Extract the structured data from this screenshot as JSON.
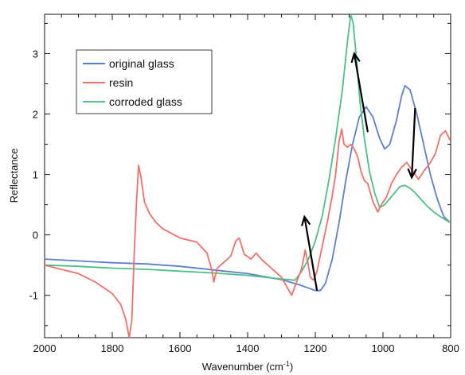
{
  "chart_data": {
    "type": "line",
    "xlabel": "Wavenumber (cm",
    "xlabel_sup": "-1",
    "xlabel_close": ")",
    "ylabel": "Reflectance",
    "xlim": [
      2000,
      800
    ],
    "ylim": [
      -1.7,
      3.65
    ],
    "x_reversed": true,
    "grid": false,
    "legend_position": "upper-left",
    "x_ticks": [
      {
        "value": 2000,
        "label": "2000"
      },
      {
        "value": 1800,
        "label": "1800"
      },
      {
        "value": 1600,
        "label": "1600"
      },
      {
        "value": 1400,
        "label": "1400"
      },
      {
        "value": 1200,
        "label": "1200"
      },
      {
        "value": 1000,
        "label": "1000"
      },
      {
        "value": 800,
        "label": "800"
      }
    ],
    "y_ticks": [
      {
        "value": -1,
        "label": "-1"
      },
      {
        "value": 0,
        "label": "0"
      },
      {
        "value": 1,
        "label": "1"
      },
      {
        "value": 2,
        "label": "2"
      },
      {
        "value": 3,
        "label": "3"
      }
    ],
    "series": [
      {
        "name": "original glass",
        "color": "#5b7fd1",
        "points": [
          [
            2000,
            -0.4
          ],
          [
            1900,
            -0.43
          ],
          [
            1800,
            -0.46
          ],
          [
            1700,
            -0.48
          ],
          [
            1600,
            -0.52
          ],
          [
            1500,
            -0.58
          ],
          [
            1400,
            -0.64
          ],
          [
            1300,
            -0.74
          ],
          [
            1250,
            -0.82
          ],
          [
            1200,
            -0.92
          ],
          [
            1185,
            -0.92
          ],
          [
            1170,
            -0.8
          ],
          [
            1150,
            -0.4
          ],
          [
            1130,
            0.2
          ],
          [
            1110,
            0.9
          ],
          [
            1090,
            1.5
          ],
          [
            1070,
            1.95
          ],
          [
            1050,
            2.12
          ],
          [
            1030,
            1.95
          ],
          [
            1010,
            1.6
          ],
          [
            995,
            1.42
          ],
          [
            980,
            1.5
          ],
          [
            960,
            1.9
          ],
          [
            945,
            2.3
          ],
          [
            935,
            2.47
          ],
          [
            920,
            2.4
          ],
          [
            900,
            2.0
          ],
          [
            880,
            1.5
          ],
          [
            860,
            1.0
          ],
          [
            840,
            0.6
          ],
          [
            820,
            0.3
          ],
          [
            800,
            0.2
          ]
        ]
      },
      {
        "name": "resin",
        "color": "#f07068",
        "points": [
          [
            2000,
            -0.5
          ],
          [
            1900,
            -0.64
          ],
          [
            1850,
            -0.78
          ],
          [
            1800,
            -0.97
          ],
          [
            1775,
            -1.15
          ],
          [
            1760,
            -1.4
          ],
          [
            1750,
            -1.7
          ],
          [
            1742,
            -1.4
          ],
          [
            1735,
            -0.3
          ],
          [
            1728,
            0.6
          ],
          [
            1722,
            1.15
          ],
          [
            1715,
            0.95
          ],
          [
            1705,
            0.55
          ],
          [
            1690,
            0.35
          ],
          [
            1670,
            0.2
          ],
          [
            1650,
            0.1
          ],
          [
            1600,
            -0.05
          ],
          [
            1550,
            -0.12
          ],
          [
            1520,
            -0.3
          ],
          [
            1505,
            -0.6
          ],
          [
            1500,
            -0.78
          ],
          [
            1490,
            -0.55
          ],
          [
            1470,
            -0.45
          ],
          [
            1450,
            -0.35
          ],
          [
            1435,
            -0.1
          ],
          [
            1425,
            -0.05
          ],
          [
            1410,
            -0.32
          ],
          [
            1390,
            -0.4
          ],
          [
            1375,
            -0.3
          ],
          [
            1360,
            -0.4
          ],
          [
            1340,
            -0.5
          ],
          [
            1320,
            -0.6
          ],
          [
            1300,
            -0.7
          ],
          [
            1280,
            -0.9
          ],
          [
            1270,
            -1.0
          ],
          [
            1260,
            -0.85
          ],
          [
            1240,
            -0.55
          ],
          [
            1230,
            -0.25
          ],
          [
            1222,
            -0.45
          ],
          [
            1215,
            -0.7
          ],
          [
            1205,
            -0.75
          ],
          [
            1195,
            -0.6
          ],
          [
            1180,
            -0.2
          ],
          [
            1165,
            0.2
          ],
          [
            1150,
            0.65
          ],
          [
            1140,
            1.0
          ],
          [
            1130,
            1.55
          ],
          [
            1122,
            1.75
          ],
          [
            1115,
            1.5
          ],
          [
            1105,
            1.45
          ],
          [
            1095,
            1.5
          ],
          [
            1085,
            1.42
          ],
          [
            1075,
            1.3
          ],
          [
            1065,
            1.05
          ],
          [
            1055,
            0.9
          ],
          [
            1045,
            0.85
          ],
          [
            1030,
            0.55
          ],
          [
            1015,
            0.38
          ],
          [
            1005,
            0.5
          ],
          [
            990,
            0.62
          ],
          [
            975,
            0.85
          ],
          [
            960,
            1.0
          ],
          [
            945,
            1.12
          ],
          [
            930,
            1.2
          ],
          [
            915,
            1.08
          ],
          [
            905,
            1.0
          ],
          [
            895,
            0.92
          ],
          [
            880,
            1.05
          ],
          [
            860,
            1.2
          ],
          [
            845,
            1.35
          ],
          [
            830,
            1.65
          ],
          [
            815,
            1.72
          ],
          [
            800,
            1.55
          ]
        ]
      },
      {
        "name": "corroded glass",
        "color": "#4cc087",
        "points": [
          [
            2000,
            -0.5
          ],
          [
            1900,
            -0.52
          ],
          [
            1800,
            -0.55
          ],
          [
            1700,
            -0.57
          ],
          [
            1600,
            -0.6
          ],
          [
            1500,
            -0.63
          ],
          [
            1400,
            -0.67
          ],
          [
            1300,
            -0.73
          ],
          [
            1260,
            -0.75
          ],
          [
            1240,
            -0.6
          ],
          [
            1220,
            -0.4
          ],
          [
            1200,
            -0.1
          ],
          [
            1180,
            0.3
          ],
          [
            1160,
            0.9
          ],
          [
            1140,
            1.6
          ],
          [
            1120,
            2.4
          ],
          [
            1105,
            3.2
          ],
          [
            1095,
            3.65
          ],
          [
            1088,
            3.5
          ],
          [
            1078,
            2.9
          ],
          [
            1068,
            2.2
          ],
          [
            1055,
            1.6
          ],
          [
            1040,
            1.05
          ],
          [
            1025,
            0.7
          ],
          [
            1010,
            0.45
          ],
          [
            995,
            0.5
          ],
          [
            980,
            0.6
          ],
          [
            965,
            0.7
          ],
          [
            950,
            0.8
          ],
          [
            935,
            0.82
          ],
          [
            920,
            0.77
          ],
          [
            905,
            0.7
          ],
          [
            890,
            0.6
          ],
          [
            870,
            0.48
          ],
          [
            850,
            0.38
          ],
          [
            830,
            0.3
          ],
          [
            815,
            0.25
          ],
          [
            800,
            0.2
          ]
        ]
      }
    ],
    "arrows": [
      {
        "from": [
          1195,
          -0.92
        ],
        "to": [
          1232,
          0.3
        ]
      },
      {
        "from": [
          1045,
          1.7
        ],
        "to": [
          1085,
          3.0
        ]
      },
      {
        "from": [
          905,
          2.1
        ],
        "to": [
          915,
          0.95
        ]
      }
    ]
  }
}
